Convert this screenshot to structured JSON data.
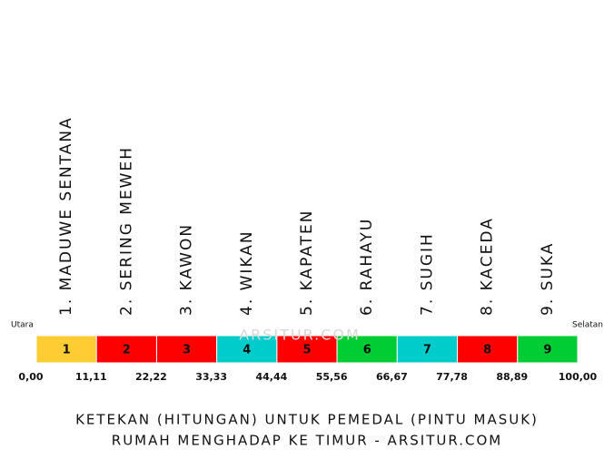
{
  "labels": {
    "north": "Utara",
    "south": "Selatan"
  },
  "watermark": "ARSITUR.COM",
  "segments": [
    {
      "number": "1",
      "name": "1. MADUWE SENTANA",
      "color": "#ffcc33"
    },
    {
      "number": "2",
      "name": "2. SERING MEWEH",
      "color": "#ff0000"
    },
    {
      "number": "3",
      "name": "3. KAWON",
      "color": "#ff0000"
    },
    {
      "number": "4",
      "name": "4. WIKAN",
      "color": "#00cccc"
    },
    {
      "number": "5",
      "name": "5. KAPATEN",
      "color": "#ff0000"
    },
    {
      "number": "6",
      "name": "6. RAHAYU",
      "color": "#00cc33"
    },
    {
      "number": "7",
      "name": "7. SUGIH",
      "color": "#00cccc"
    },
    {
      "number": "8",
      "name": "8. KACEDA",
      "color": "#ff0000"
    },
    {
      "number": "9",
      "name": "9. SUKA",
      "color": "#00cc33"
    }
  ],
  "scale": {
    "range": [
      0,
      100
    ],
    "ticks": [
      {
        "value": 0,
        "label": "0,00"
      },
      {
        "value": 11.11,
        "label": "11,11"
      },
      {
        "value": 22.22,
        "label": "22,22"
      },
      {
        "value": 33.33,
        "label": "33,33"
      },
      {
        "value": 44.44,
        "label": "44,44"
      },
      {
        "value": 55.56,
        "label": "55,56"
      },
      {
        "value": 66.67,
        "label": "66,67"
      },
      {
        "value": 77.78,
        "label": "77,78"
      },
      {
        "value": 88.89,
        "label": "88,89"
      },
      {
        "value": 100,
        "label": "100,00"
      }
    ]
  },
  "caption": [
    "KETEKAN (HITUNGAN) UNTUK PEMEDAL (PINTU MASUK)",
    "RUMAH MENGHADAP KE TIMUR - ARSITUR.COM"
  ]
}
